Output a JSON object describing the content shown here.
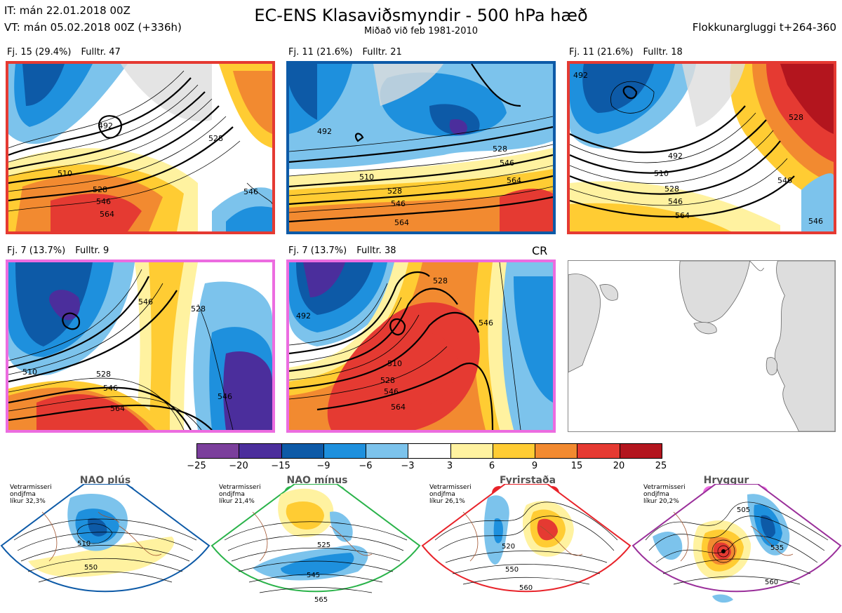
{
  "header": {
    "it_line": "IT: mán 22.01.2018 00Z",
    "vt_line": "VT: mán 05.02.2018 00Z  (+336h)",
    "title": "EC-ENS Klasaviðsmyndir - 500 hPa hæð",
    "subtitle": "Miðað við feb 1981-2010",
    "window": "Flokkunargluggi t+264-360"
  },
  "panels": [
    {
      "label": "Fj. 15 (29.4%)",
      "members": "Fulltr. 47",
      "border_color": "#e53a32",
      "contours": [
        "492",
        "510",
        "528",
        "546",
        "564",
        "546",
        "528"
      ]
    },
    {
      "label": "Fj. 11 (21.6%)",
      "members": "Fulltr. 21",
      "border_color": "#0d5aa7",
      "contours": [
        "492",
        "510",
        "528",
        "546",
        "564",
        "528",
        "546",
        "564"
      ]
    },
    {
      "label": "Fj. 11 (21.6%)",
      "members": "Fulltr. 18",
      "border_color": "#e53a32",
      "contours": [
        "492",
        "492",
        "510",
        "528",
        "546",
        "564",
        "528",
        "546",
        "546"
      ]
    },
    {
      "label": "Fj. 7 (13.7%)",
      "members": "Fulltr. 9",
      "border_color": "#ec6ce0",
      "contours": [
        "510",
        "528",
        "546",
        "564",
        "546",
        "528"
      ]
    },
    {
      "label": "Fj. 7 (13.7%)",
      "members": "Fulltr. 38",
      "border_color": "#ec6ce0",
      "contours": [
        "492",
        "510",
        "528",
        "546",
        "564",
        "528",
        "546"
      ]
    }
  ],
  "cr_label": "CR",
  "colorbar": {
    "ticks": [
      "−25",
      "−20",
      "−15",
      "−9",
      "−6",
      "−3",
      "3",
      "6",
      "9",
      "15",
      "20",
      "25"
    ],
    "colors": [
      "#7b3f9c",
      "#4b2e9c",
      "#0d5aa7",
      "#1e90dd",
      "#7cc3ec",
      "#ffffff",
      "#fff2a0",
      "#ffcc33",
      "#f28a30",
      "#e53a32",
      "#b3151e"
    ]
  },
  "regimes": [
    {
      "title": "NAO plús",
      "note": [
        "Vetrarmisseri",
        "ondjfma",
        "líkur 32,3%"
      ],
      "color": "#0d5aa7",
      "contours": [
        "510",
        "550"
      ]
    },
    {
      "title": "NAO mínus",
      "note": [
        "Vetrarmisseri",
        "ondjfma",
        "líkur 21,4%"
      ],
      "color": "#2ab34a",
      "contours": [
        "525",
        "545",
        "565"
      ]
    },
    {
      "title": "Fyrirstaða",
      "note": [
        "Vetrarmisseri",
        "ondjfma",
        "líkur 26,1%"
      ],
      "color": "#e8232a",
      "contours": [
        "520",
        "550",
        "560"
      ]
    },
    {
      "title": "Hryggur",
      "note": [
        "Vetrarmisseri",
        "ondjfma",
        "líkur 20,2%"
      ],
      "color": "#ec6ce0",
      "contours": [
        "505",
        "535",
        "560"
      ]
    }
  ]
}
